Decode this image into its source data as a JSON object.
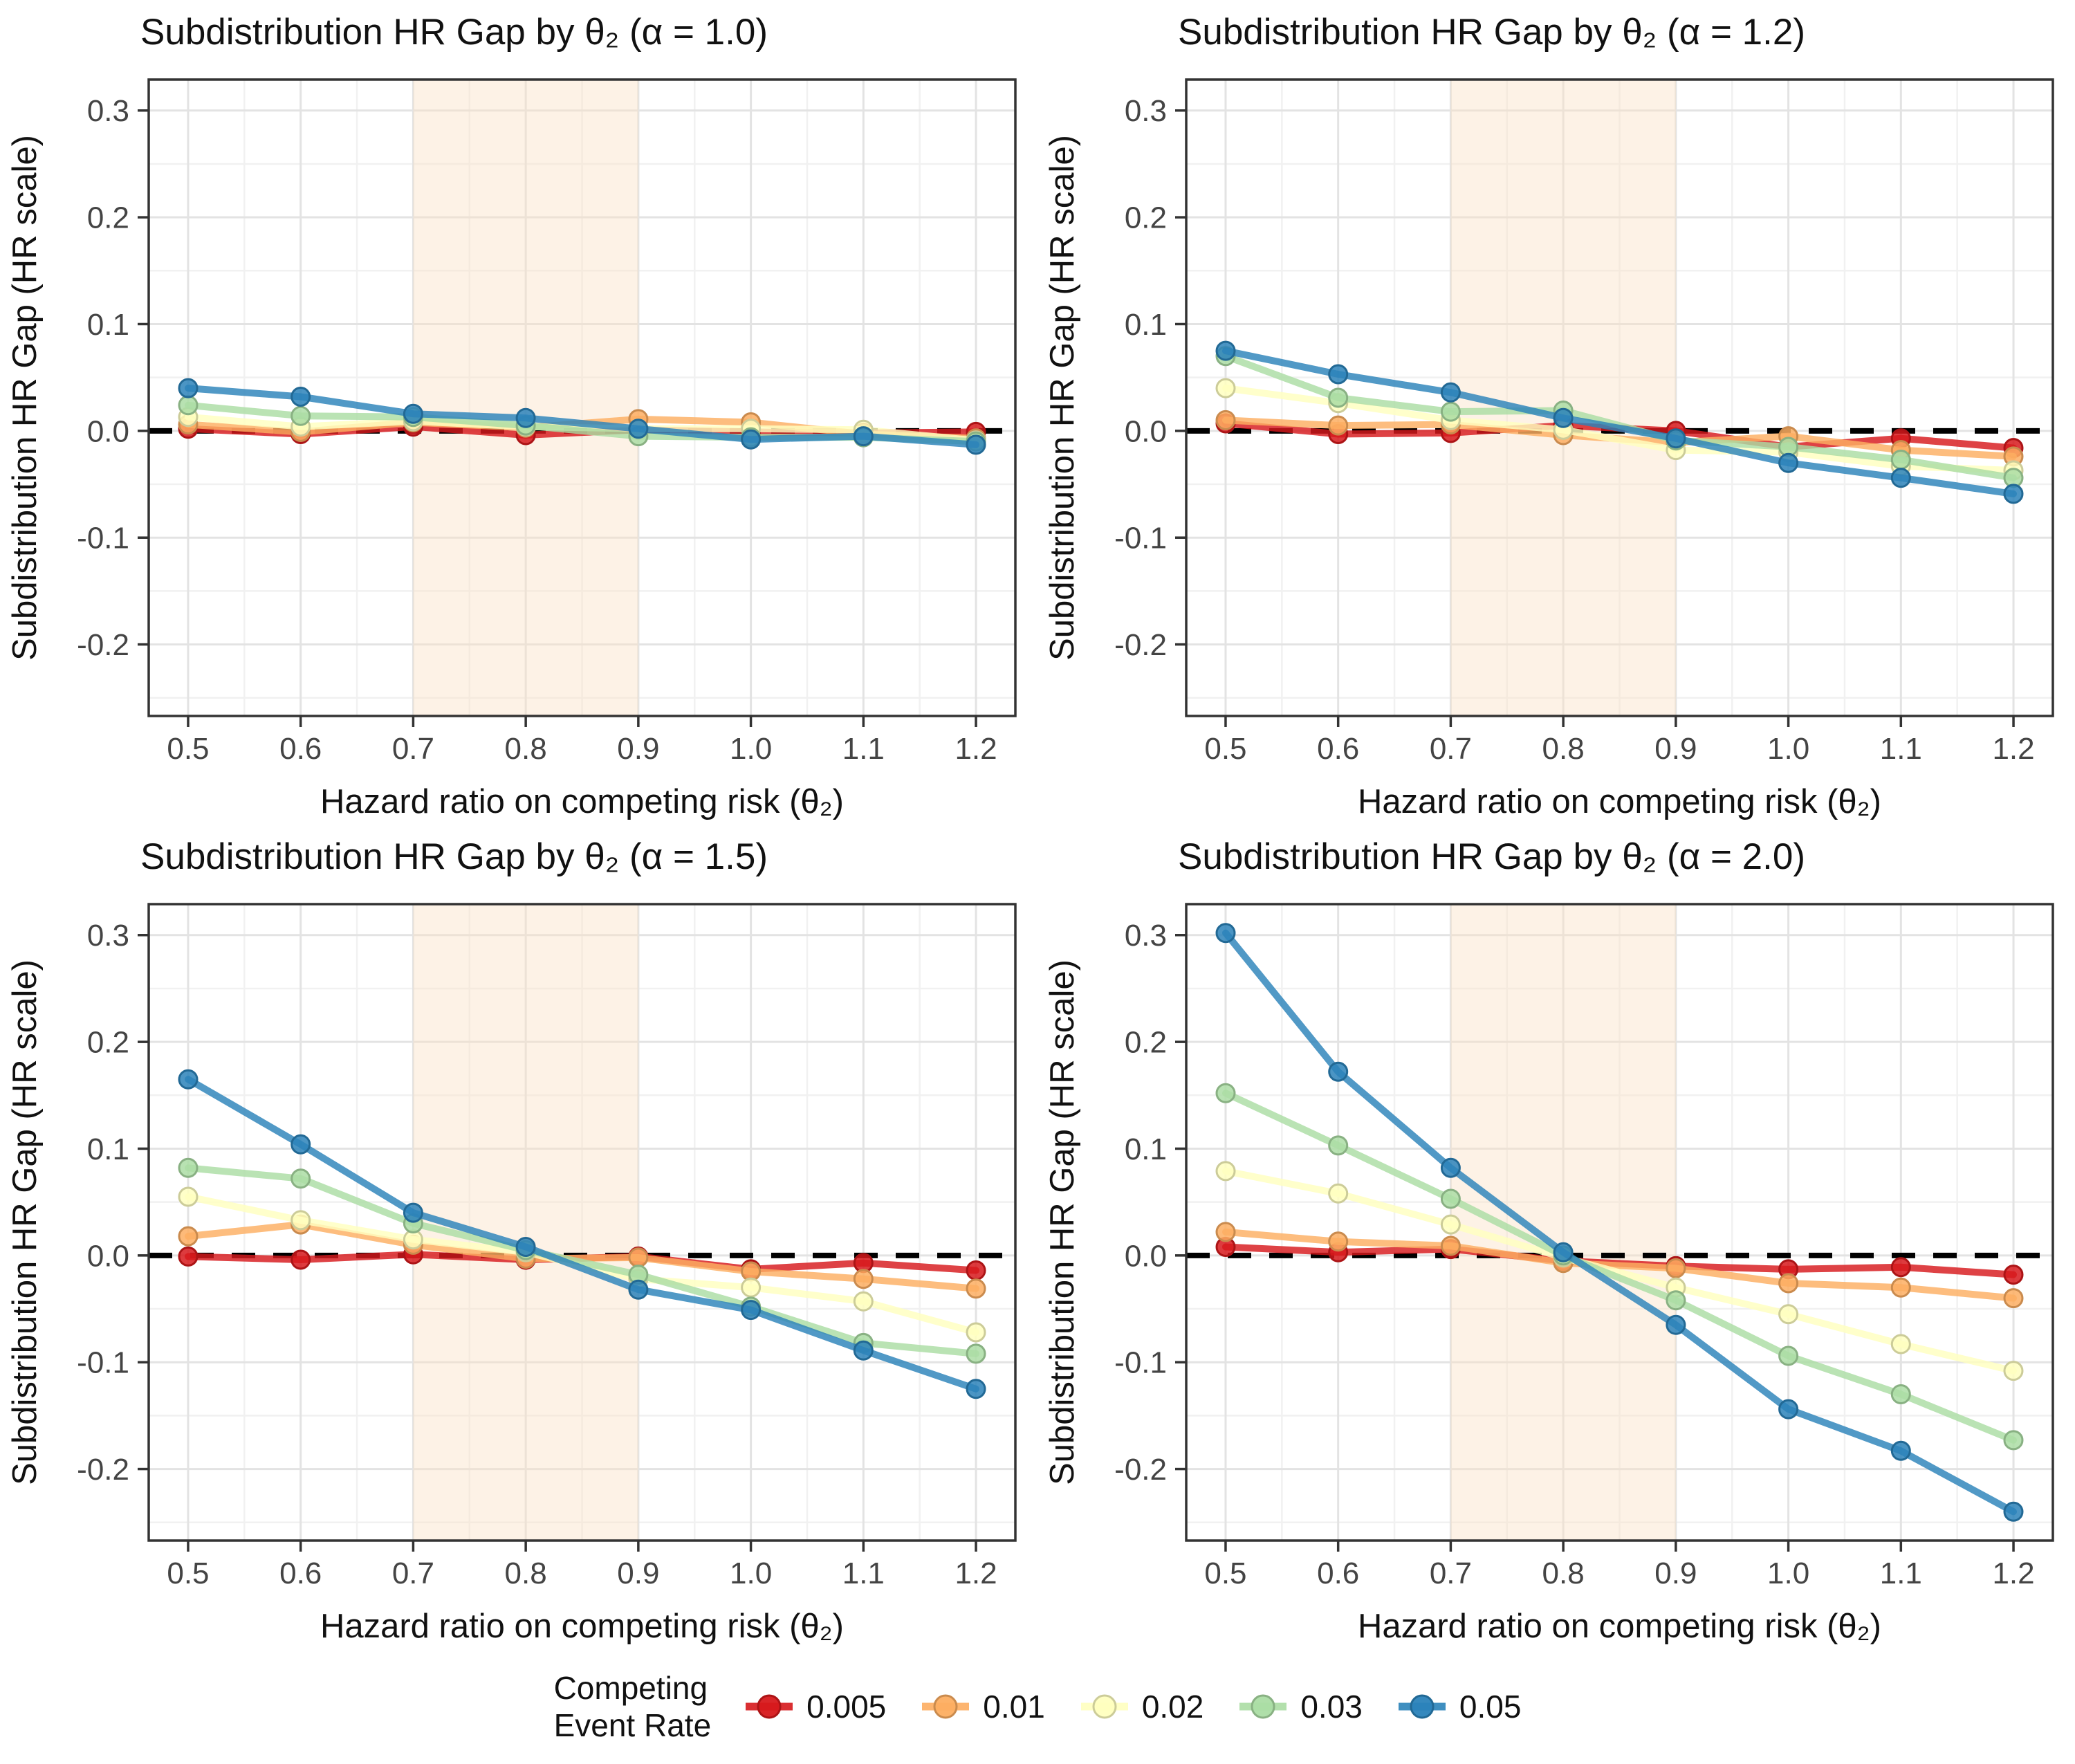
{
  "figure": {
    "background": "#ffffff",
    "grid_major_color": "#e3e3e3",
    "grid_minor_color": "#f1f1f1",
    "panel_border_color": "#333333",
    "tick_label_color": "#444444",
    "text_color": "#111111"
  },
  "legend": {
    "title_line1": "Competing",
    "title_line2": "Event Rate",
    "items": [
      {
        "label": "0.005",
        "color": "#D7191C"
      },
      {
        "label": "0.01",
        "color": "#FDAE61"
      },
      {
        "label": "0.02",
        "color": "#FFFFBF"
      },
      {
        "label": "0.03",
        "color": "#ABDDA4"
      },
      {
        "label": "0.05",
        "color": "#2B83BA"
      }
    ]
  },
  "chart_data": [
    {
      "type": "line",
      "panel": "alpha-1.0",
      "title": "Subdistribution HR Gap by θ₂ (α = 1.0)",
      "xlabel": "Hazard ratio on competing risk (θ₂)",
      "ylabel": "Subdistribution HR Gap (HR scale)",
      "x": [
        0.5,
        0.6,
        0.7,
        0.8,
        0.9,
        1.0,
        1.1,
        1.2
      ],
      "x_ticks": [
        "0.5",
        "0.6",
        "0.7",
        "0.8",
        "0.9",
        "1.0",
        "1.1",
        "1.2"
      ],
      "y_tick_values": [
        -0.2,
        -0.1,
        0.0,
        0.1,
        0.2,
        0.3
      ],
      "y_ticks": [
        "-0.2",
        "-0.1",
        "0.0",
        "0.1",
        "0.2",
        "0.3"
      ],
      "y_minor_values": [
        -0.25,
        -0.15,
        -0.05,
        0.05,
        0.15,
        0.25
      ],
      "x_minor_values": [
        0.55,
        0.65,
        0.75,
        0.85,
        0.95,
        1.05,
        1.15
      ],
      "xlim": [
        0.465,
        1.235
      ],
      "ylim": [
        -0.267,
        0.329
      ],
      "grid": true,
      "legend_position": "bottom-shared",
      "highlight_band": {
        "x0": 0.7,
        "x1": 0.9,
        "color": "rgba(250,224,196,0.42)"
      },
      "reference_line": {
        "y": 0,
        "style": "dashed",
        "color": "#000000"
      },
      "series": [
        {
          "name": "0.005",
          "color": "#D7191C",
          "values": [
            0.002,
            -0.003,
            0.004,
            -0.004,
            0.001,
            -0.001,
            -0.002,
            -0.001
          ]
        },
        {
          "name": "0.01",
          "color": "#FDAE61",
          "values": [
            0.006,
            -0.001,
            0.008,
            0.003,
            0.011,
            0.008,
            -0.003,
            -0.007
          ]
        },
        {
          "name": "0.02",
          "color": "#FFFFBF",
          "values": [
            0.013,
            0.004,
            0.009,
            0.004,
            0.002,
            0.002,
            0.001,
            -0.009
          ]
        },
        {
          "name": "0.03",
          "color": "#ABDDA4",
          "values": [
            0.024,
            0.014,
            0.013,
            0.005,
            -0.005,
            -0.006,
            -0.006,
            -0.01
          ]
        },
        {
          "name": "0.05",
          "color": "#2B83BA",
          "values": [
            0.04,
            0.032,
            0.016,
            0.012,
            0.002,
            -0.008,
            -0.005,
            -0.013
          ]
        }
      ]
    },
    {
      "type": "line",
      "panel": "alpha-1.2",
      "title": "Subdistribution HR Gap by θ₂ (α = 1.2)",
      "xlabel": "Hazard ratio on competing risk (θ₂)",
      "ylabel": "Subdistribution HR Gap (HR scale)",
      "x": [
        0.5,
        0.6,
        0.7,
        0.8,
        0.9,
        1.0,
        1.1,
        1.2
      ],
      "x_ticks": [
        "0.5",
        "0.6",
        "0.7",
        "0.8",
        "0.9",
        "1.0",
        "1.1",
        "1.2"
      ],
      "y_tick_values": [
        -0.2,
        -0.1,
        0.0,
        0.1,
        0.2,
        0.3
      ],
      "y_ticks": [
        "-0.2",
        "-0.1",
        "0.0",
        "0.1",
        "0.2",
        "0.3"
      ],
      "y_minor_values": [
        -0.25,
        -0.15,
        -0.05,
        0.05,
        0.15,
        0.25
      ],
      "x_minor_values": [
        0.55,
        0.65,
        0.75,
        0.85,
        0.95,
        1.05,
        1.15
      ],
      "xlim": [
        0.465,
        1.235
      ],
      "ylim": [
        -0.267,
        0.329
      ],
      "grid": true,
      "legend_position": "bottom-shared",
      "highlight_band": {
        "x0": 0.7,
        "x1": 0.9,
        "color": "rgba(250,224,196,0.42)"
      },
      "reference_line": {
        "y": 0,
        "style": "dashed",
        "color": "#000000"
      },
      "series": [
        {
          "name": "0.005",
          "color": "#D7191C",
          "values": [
            0.007,
            -0.003,
            -0.002,
            0.005,
            0.0,
            -0.015,
            -0.007,
            -0.016
          ]
        },
        {
          "name": "0.01",
          "color": "#FDAE61",
          "values": [
            0.01,
            0.005,
            0.006,
            -0.004,
            -0.011,
            -0.005,
            -0.018,
            -0.024
          ]
        },
        {
          "name": "0.02",
          "color": "#FFFFBF",
          "values": [
            0.04,
            0.026,
            0.01,
            0.001,
            -0.018,
            -0.02,
            -0.033,
            -0.037
          ]
        },
        {
          "name": "0.03",
          "color": "#ABDDA4",
          "values": [
            0.07,
            0.031,
            0.018,
            0.019,
            -0.009,
            -0.015,
            -0.027,
            -0.044
          ]
        },
        {
          "name": "0.05",
          "color": "#2B83BA",
          "values": [
            0.075,
            0.053,
            0.036,
            0.012,
            -0.007,
            -0.03,
            -0.044,
            -0.059
          ]
        }
      ]
    },
    {
      "type": "line",
      "panel": "alpha-1.5",
      "title": "Subdistribution HR Gap by θ₂ (α = 1.5)",
      "xlabel": "Hazard ratio on competing risk (θ₂)",
      "ylabel": "Subdistribution HR Gap (HR scale)",
      "x": [
        0.5,
        0.6,
        0.7,
        0.8,
        0.9,
        1.0,
        1.1,
        1.2
      ],
      "x_ticks": [
        "0.5",
        "0.6",
        "0.7",
        "0.8",
        "0.9",
        "1.0",
        "1.1",
        "1.2"
      ],
      "y_tick_values": [
        -0.2,
        -0.1,
        0.0,
        0.1,
        0.2,
        0.3
      ],
      "y_ticks": [
        "-0.2",
        "-0.1",
        "0.0",
        "0.1",
        "0.2",
        "0.3"
      ],
      "y_minor_values": [
        -0.25,
        -0.15,
        -0.05,
        0.05,
        0.15,
        0.25
      ],
      "x_minor_values": [
        0.55,
        0.65,
        0.75,
        0.85,
        0.95,
        1.05,
        1.15
      ],
      "xlim": [
        0.465,
        1.235
      ],
      "ylim": [
        -0.267,
        0.329
      ],
      "grid": true,
      "legend_position": "bottom-shared",
      "highlight_band": {
        "x0": 0.7,
        "x1": 0.9,
        "color": "rgba(250,224,196,0.42)"
      },
      "reference_line": {
        "y": 0,
        "style": "dashed",
        "color": "#000000"
      },
      "series": [
        {
          "name": "0.005",
          "color": "#D7191C",
          "values": [
            -0.001,
            -0.004,
            0.001,
            -0.004,
            -0.001,
            -0.013,
            -0.007,
            -0.014
          ]
        },
        {
          "name": "0.01",
          "color": "#FDAE61",
          "values": [
            0.018,
            0.029,
            0.01,
            -0.003,
            -0.002,
            -0.015,
            -0.022,
            -0.031
          ]
        },
        {
          "name": "0.02",
          "color": "#FFFFBF",
          "values": [
            0.055,
            0.033,
            0.015,
            0.003,
            -0.022,
            -0.03,
            -0.043,
            -0.072
          ]
        },
        {
          "name": "0.03",
          "color": "#ABDDA4",
          "values": [
            0.082,
            0.072,
            0.03,
            0.005,
            -0.018,
            -0.048,
            -0.082,
            -0.092
          ]
        },
        {
          "name": "0.05",
          "color": "#2B83BA",
          "values": [
            0.165,
            0.104,
            0.04,
            0.008,
            -0.032,
            -0.051,
            -0.089,
            -0.125
          ]
        }
      ]
    },
    {
      "type": "line",
      "panel": "alpha-2.0",
      "title": "Subdistribution HR Gap by θ₂ (α = 2.0)",
      "xlabel": "Hazard ratio on competing risk (θ₂)",
      "ylabel": "Subdistribution HR Gap (HR scale)",
      "x": [
        0.5,
        0.6,
        0.7,
        0.8,
        0.9,
        1.0,
        1.1,
        1.2
      ],
      "x_ticks": [
        "0.5",
        "0.6",
        "0.7",
        "0.8",
        "0.9",
        "1.0",
        "1.1",
        "1.2"
      ],
      "y_tick_values": [
        -0.2,
        -0.1,
        0.0,
        0.1,
        0.2,
        0.3
      ],
      "y_ticks": [
        "-0.2",
        "-0.1",
        "0.0",
        "0.1",
        "0.2",
        "0.3"
      ],
      "y_minor_values": [
        -0.25,
        -0.15,
        -0.05,
        0.05,
        0.15,
        0.25
      ],
      "x_minor_values": [
        0.55,
        0.65,
        0.75,
        0.85,
        0.95,
        1.05,
        1.15
      ],
      "xlim": [
        0.465,
        1.235
      ],
      "ylim": [
        -0.267,
        0.329
      ],
      "grid": true,
      "legend_position": "bottom-shared",
      "highlight_band": {
        "x0": 0.7,
        "x1": 0.9,
        "color": "rgba(250,224,196,0.42)"
      },
      "reference_line": {
        "y": 0,
        "style": "dashed",
        "color": "#000000"
      },
      "series": [
        {
          "name": "0.005",
          "color": "#D7191C",
          "values": [
            0.008,
            0.003,
            0.006,
            -0.005,
            -0.01,
            -0.013,
            -0.011,
            -0.018
          ]
        },
        {
          "name": "0.01",
          "color": "#FDAE61",
          "values": [
            0.022,
            0.013,
            0.009,
            -0.007,
            -0.012,
            -0.026,
            -0.03,
            -0.04
          ]
        },
        {
          "name": "0.02",
          "color": "#FFFFBF",
          "values": [
            0.079,
            0.058,
            0.029,
            -0.002,
            -0.03,
            -0.055,
            -0.083,
            -0.108
          ]
        },
        {
          "name": "0.03",
          "color": "#ABDDA4",
          "values": [
            0.152,
            0.103,
            0.053,
            0.0,
            -0.042,
            -0.094,
            -0.13,
            -0.173
          ]
        },
        {
          "name": "0.05",
          "color": "#2B83BA",
          "values": [
            0.302,
            0.172,
            0.082,
            0.003,
            -0.065,
            -0.144,
            -0.183,
            -0.24
          ]
        }
      ]
    }
  ]
}
